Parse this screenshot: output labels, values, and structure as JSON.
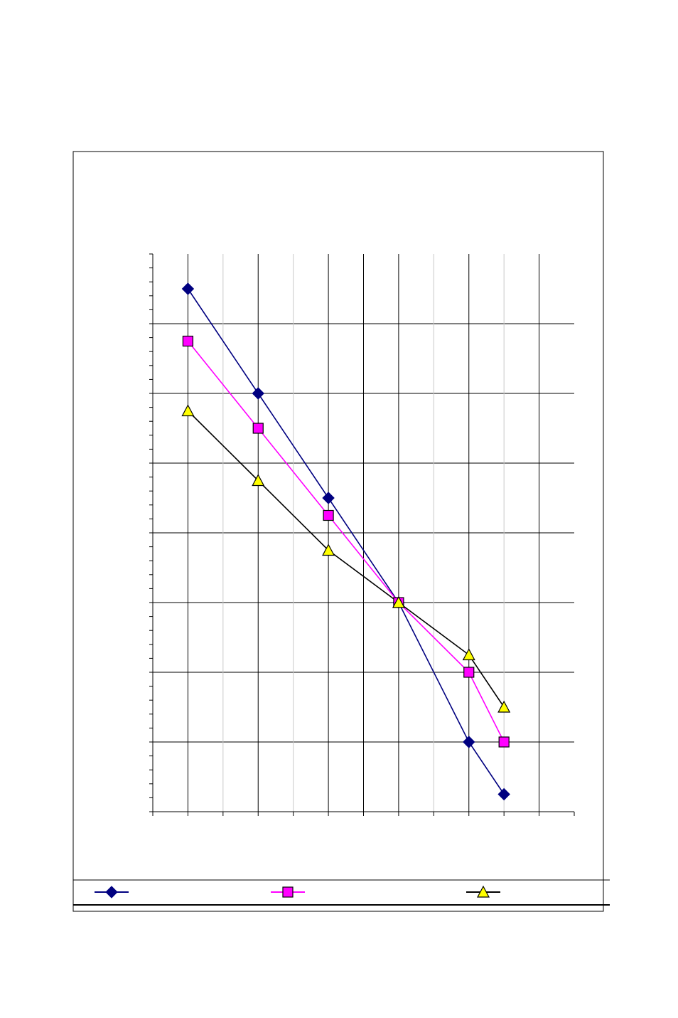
{
  "chart_data": {
    "type": "line",
    "title": "",
    "xlabel": "",
    "ylabel": "",
    "grid": true,
    "legend_position": "bottom",
    "x_positions": [
      1,
      2,
      3,
      4,
      5,
      6,
      7,
      8,
      9,
      10,
      11,
      12
    ],
    "x": [
      2,
      4,
      6,
      8,
      10,
      11
    ],
    "xlim": [
      1,
      13
    ],
    "ylim": [
      0,
      8
    ],
    "series": [
      {
        "marker": "diamond",
        "color": "#000080",
        "marker_fill": "#000080",
        "values": [
          7.5,
          6.0,
          4.5,
          3.0,
          1.0,
          0.25
        ]
      },
      {
        "marker": "square",
        "color": "#FF00FF",
        "marker_fill": "#FF00FF",
        "values": [
          6.75,
          5.5,
          4.25,
          3.0,
          2.0,
          1.0
        ]
      },
      {
        "marker": "triangle",
        "color": "#000000",
        "marker_fill": "#FFFF00",
        "values": [
          5.75,
          4.75,
          3.75,
          3.0,
          2.25,
          1.5
        ]
      }
    ]
  }
}
